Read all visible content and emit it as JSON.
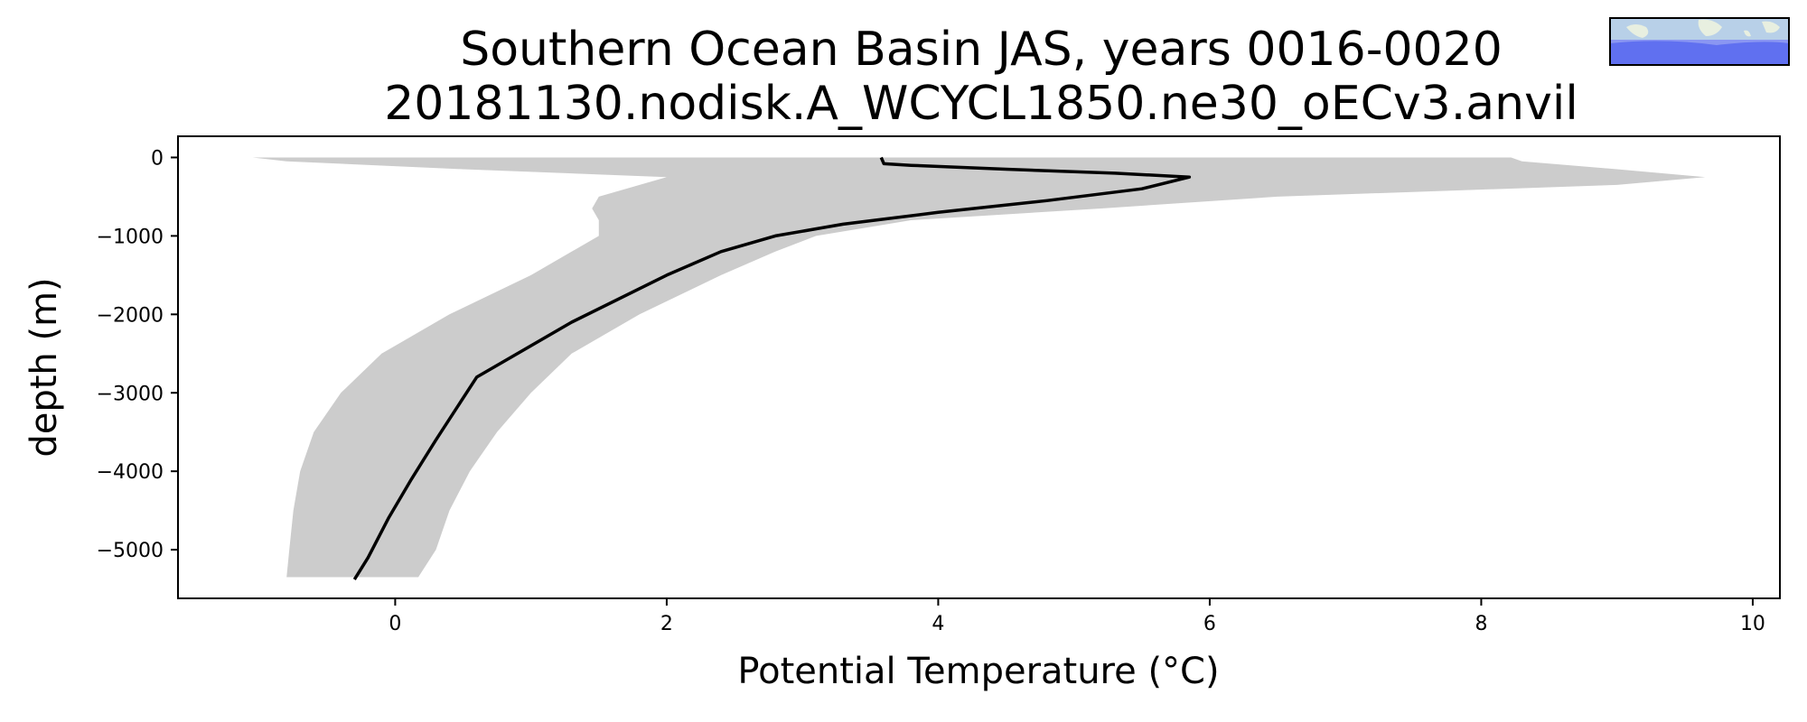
{
  "chart_data": {
    "type": "line",
    "title": "Southern Ocean Basin JAS, years 0016-0020",
    "subtitle": "20181130.nodisk.A_WCYCL1850.ne30_oECv3.anvil",
    "xlabel": "Potential Temperature (°C)",
    "ylabel": "depth (m)",
    "xlim": [
      -1.6,
      10.2
    ],
    "ylim": [
      -5620,
      270
    ],
    "xticks": [
      0,
      2,
      4,
      6,
      8,
      10
    ],
    "yticks": [
      0,
      -1000,
      -2000,
      -3000,
      -4000,
      -5000
    ],
    "xtick_labels": [
      "0",
      "2",
      "4",
      "6",
      "8",
      "10"
    ],
    "ytick_labels": [
      "0",
      "−1000",
      "−2000",
      "−3000",
      "−4000",
      "−5000"
    ],
    "grid": false,
    "colors": {
      "mean_line": "#000000",
      "spread_band": "#cccccc",
      "inset_ocean": "#6070f0",
      "inset_land": "#b8d0e8"
    },
    "inset_map": {
      "description_icon": "region-map-icon"
    },
    "series": [
      {
        "type": "line",
        "x": [
          3.58,
          3.6,
          3.8,
          4.5,
          5.3,
          5.85,
          5.5,
          4.8,
          4.0,
          3.3,
          2.8,
          2.4,
          2.0,
          1.3,
          0.6,
          0.3,
          0.12,
          -0.05,
          -0.2,
          -0.3
        ],
        "y": [
          0,
          -80,
          -100,
          -150,
          -200,
          -250,
          -400,
          -550,
          -700,
          -850,
          -1000,
          -1200,
          -1500,
          -2100,
          -2800,
          -3600,
          -4100,
          -4600,
          -5100,
          -5380
        ]
      },
      {
        "type": "band",
        "y": [
          0,
          -50,
          -150,
          -250,
          -350,
          -500,
          -650,
          -800,
          -1000,
          -1200,
          -1500,
          -2000,
          -2500,
          -3000,
          -3500,
          -4000,
          -4500,
          -5000,
          -5350
        ],
        "x_low": [
          -1.05,
          -0.8,
          0.5,
          2.0,
          1.8,
          1.5,
          1.45,
          1.5,
          1.5,
          1.3,
          1.0,
          0.4,
          -0.1,
          -0.4,
          -0.6,
          -0.7,
          -0.75,
          -0.78,
          -0.8
        ],
        "x_high": [
          8.22,
          8.3,
          9.0,
          9.65,
          9.0,
          6.5,
          5.2,
          3.8,
          3.1,
          2.8,
          2.4,
          1.8,
          1.3,
          1.0,
          0.75,
          0.55,
          0.4,
          0.3,
          0.17
        ]
      }
    ]
  }
}
